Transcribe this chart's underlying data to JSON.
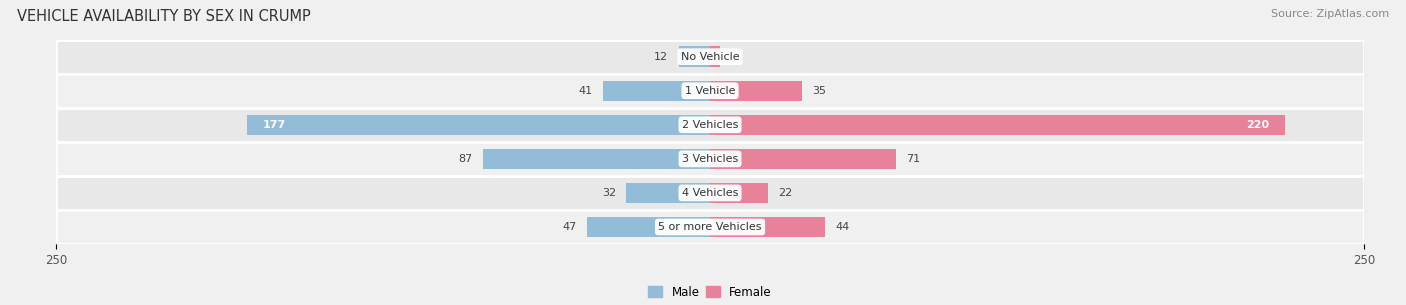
{
  "title": "VEHICLE AVAILABILITY BY SEX IN CRUMP",
  "source": "Source: ZipAtlas.com",
  "categories": [
    "No Vehicle",
    "1 Vehicle",
    "2 Vehicles",
    "3 Vehicles",
    "4 Vehicles",
    "5 or more Vehicles"
  ],
  "male_values": [
    12,
    41,
    177,
    87,
    32,
    47
  ],
  "female_values": [
    4,
    35,
    220,
    71,
    22,
    44
  ],
  "male_color": "#92bcd8",
  "female_color": "#e8829a",
  "axis_max": 250,
  "bar_height": 0.6,
  "row_bg_even": "#e8e8e8",
  "row_bg_odd": "#f0f0f0",
  "fig_bg": "#f0f0f0",
  "title_fontsize": 10.5,
  "source_fontsize": 8,
  "label_fontsize": 8,
  "category_fontsize": 8,
  "tick_fontsize": 8.5,
  "legend_fontsize": 8.5
}
